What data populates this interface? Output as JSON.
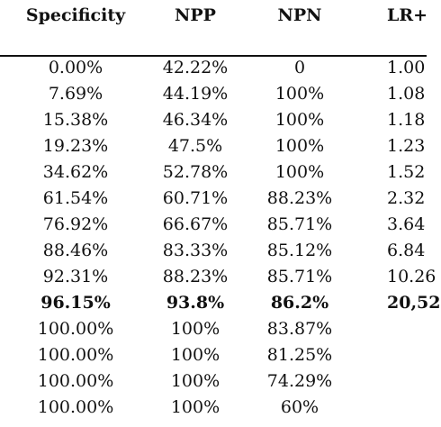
{
  "table": {
    "headers": [
      "Specificity",
      "NPP",
      "NPN",
      "LR+"
    ],
    "rows": [
      {
        "specificity": "0.00%",
        "npp": "42.22%",
        "npn": "0",
        "lr": "1.00"
      },
      {
        "specificity": "7.69%",
        "npp": "44.19%",
        "npn": "100%",
        "lr": "1.08"
      },
      {
        "specificity": "15.38%",
        "npp": "46.34%",
        "npn": "100%",
        "lr": "1.18"
      },
      {
        "specificity": "19.23%",
        "npp": "47.5%",
        "npn": "100%",
        "lr": "1.23"
      },
      {
        "specificity": "34.62%",
        "npp": "52.78%",
        "npn": "100%",
        "lr": "1.52"
      },
      {
        "specificity": "61.54%",
        "npp": "60.71%",
        "npn": "88.23%",
        "lr": "2.32"
      },
      {
        "specificity": "76.92%",
        "npp": "66.67%",
        "npn": "85.71%",
        "lr": "3.64"
      },
      {
        "specificity": "88.46%",
        "npp": "83.33%",
        "npn": "85.12%",
        "lr": "6.84"
      },
      {
        "specificity": "92.31%",
        "npp": "88.23%",
        "npn": "85.71%",
        "lr": "10.26"
      },
      {
        "specificity": "96.15%",
        "npp": "93.8%",
        "npn": "86.2%",
        "lr": "20,52",
        "bold": true
      },
      {
        "specificity": "100.00%",
        "npp": "100%",
        "npn": "83.87%",
        "lr": ""
      },
      {
        "specificity": "100.00%",
        "npp": "100%",
        "npn": "81.25%",
        "lr": ""
      },
      {
        "specificity": "100.00%",
        "npp": "100%",
        "npn": "74.29%",
        "lr": ""
      },
      {
        "specificity": "100.00%",
        "npp": "100%",
        "npn": "60%",
        "lr": ""
      }
    ]
  }
}
